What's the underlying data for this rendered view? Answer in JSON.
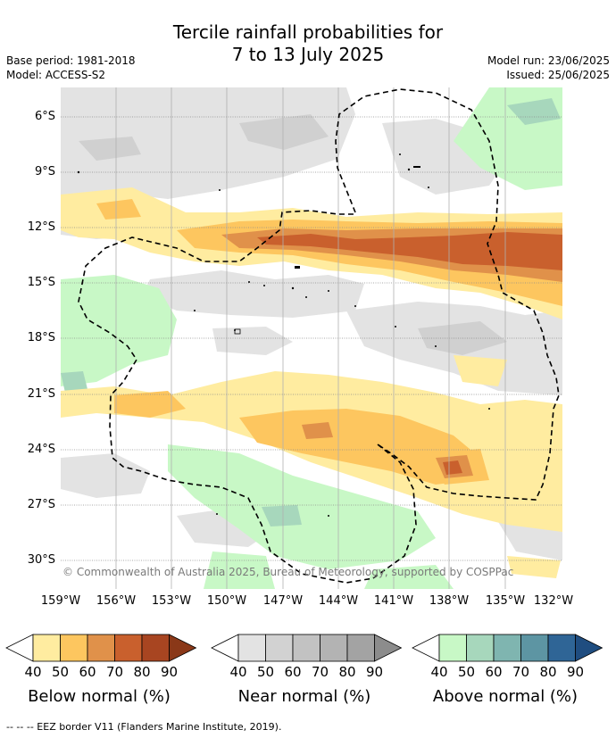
{
  "title_line1": "Tercile rainfall probabilities for",
  "title_line2": "7 to 13 July 2025",
  "meta": {
    "base_period": "Base period: 1981-2018",
    "model": "Model: ACCESS-S2",
    "model_run": "Model run: 23/06/2025",
    "issued": "Issued: 25/06/2025"
  },
  "map": {
    "lat_ticks": [
      "6°S",
      "9°S",
      "12°S",
      "15°S",
      "18°S",
      "21°S",
      "24°S",
      "27°S",
      "30°S"
    ],
    "lon_ticks": [
      "159°W",
      "156°W",
      "153°W",
      "150°W",
      "147°W",
      "144°W",
      "141°W",
      "138°W",
      "135°W",
      "132°W"
    ],
    "lat_range": [
      -31.5,
      -4.5
    ],
    "lon_range": [
      -159,
      -132
    ],
    "gridlines": true,
    "copyright": "© Commonwealth of Australia 2025, Bureau of Meteorology, supported by COSPPac"
  },
  "legend": {
    "below": {
      "label": "Below normal (%)",
      "ticks": [
        "40",
        "50",
        "60",
        "70",
        "80",
        "90"
      ],
      "colors": [
        "#ffeca0",
        "#fdc65f",
        "#e0914a",
        "#c9602d",
        "#a84521"
      ]
    },
    "near": {
      "label": "Near normal (%)",
      "ticks": [
        "40",
        "50",
        "60",
        "70",
        "80",
        "90"
      ],
      "colors": [
        "#e3e3e3",
        "#d2d2d2",
        "#c2c2c2",
        "#b3b3b3",
        "#a3a3a3"
      ]
    },
    "above": {
      "label": "Above normal (%)",
      "ticks": [
        "40",
        "50",
        "60",
        "70",
        "80",
        "90"
      ],
      "colors": [
        "#c8f8c6",
        "#a7d7bc",
        "#7fb5b0",
        "#5d95a3",
        "#2f6596"
      ]
    }
  },
  "footnote": "--  --  -- EEZ border V11 (Flanders Marine Institute, 2019)."
}
